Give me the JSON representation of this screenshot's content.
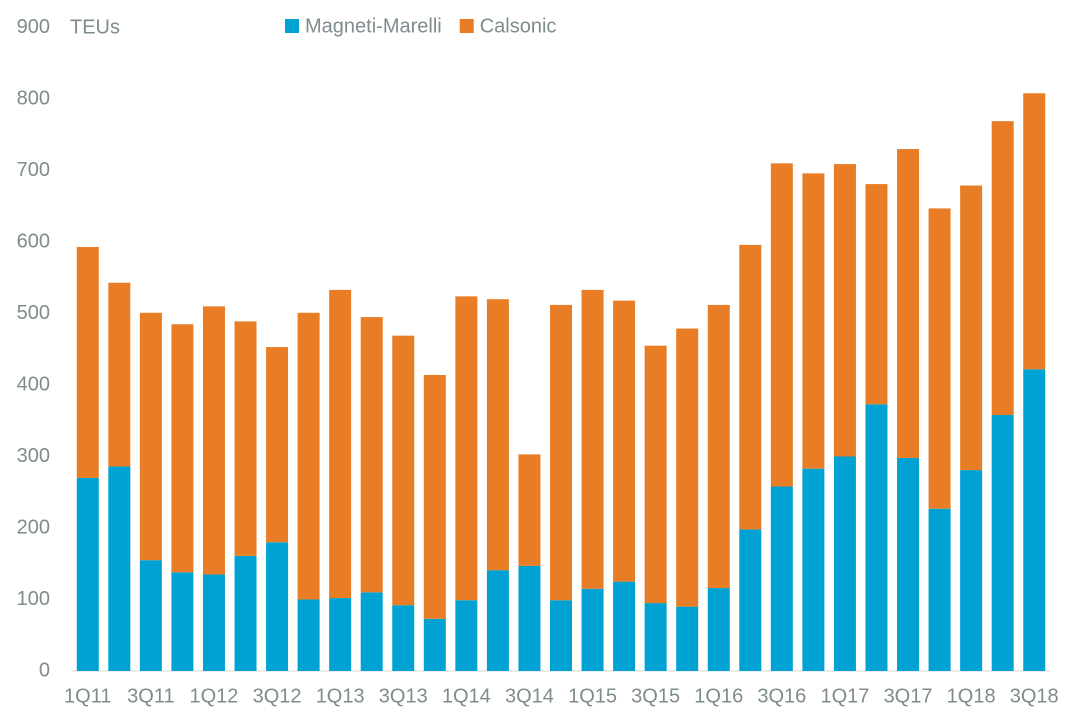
{
  "chart_data": {
    "type": "stacked_bar",
    "y_label": "TEUs",
    "categories": [
      "1Q11",
      null,
      "3Q11",
      null,
      "1Q12",
      null,
      "3Q12",
      null,
      "1Q13",
      null,
      "3Q13",
      null,
      "1Q14",
      null,
      "3Q14",
      null,
      "1Q15",
      null,
      "3Q15",
      null,
      "1Q16",
      null,
      "3Q16",
      null,
      "1Q17",
      null,
      "3Q17",
      null,
      "1Q18",
      null,
      "3Q18"
    ],
    "series": [
      {
        "name": "Magneti-Marelli",
        "color": "#00a2d3",
        "values": [
          270,
          286,
          155,
          138,
          135,
          161,
          180,
          100,
          102,
          110,
          92,
          73,
          99,
          141,
          147,
          99,
          115,
          125,
          95,
          90,
          116,
          198,
          258,
          283,
          300,
          373,
          298,
          227,
          281,
          358,
          422
        ]
      },
      {
        "name": "Calsonic",
        "color": "#e87d26",
        "values": [
          323,
          257,
          346,
          347,
          375,
          328,
          273,
          401,
          431,
          385,
          377,
          341,
          425,
          379,
          156,
          413,
          418,
          393,
          360,
          389,
          396,
          398,
          452,
          413,
          409,
          308,
          432,
          420,
          398,
          411,
          386
        ]
      }
    ],
    "ylim": [
      0,
      900
    ],
    "yticks": [
      0,
      100,
      200,
      300,
      400,
      500,
      600,
      700,
      800,
      900
    ],
    "legend": "top"
  }
}
